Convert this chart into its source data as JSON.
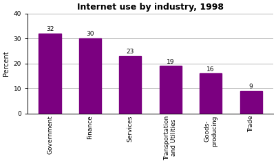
{
  "title": "Internet use by industry, 1998",
  "categories": [
    "Government",
    "Finance",
    "Services",
    "Transportation\nand Utilities",
    "Goods-\nproducing",
    "Trade"
  ],
  "values": [
    32,
    30,
    23,
    19,
    16,
    9
  ],
  "bar_color": "#7b0080",
  "ylabel": "Percent",
  "ylim": [
    0,
    40
  ],
  "yticks": [
    0,
    10,
    20,
    30,
    40
  ],
  "title_fontsize": 9,
  "label_fontsize": 7,
  "tick_fontsize": 6.5,
  "bar_value_fontsize": 6.5,
  "background_color": "#ffffff",
  "grid_color": "#aaaaaa"
}
